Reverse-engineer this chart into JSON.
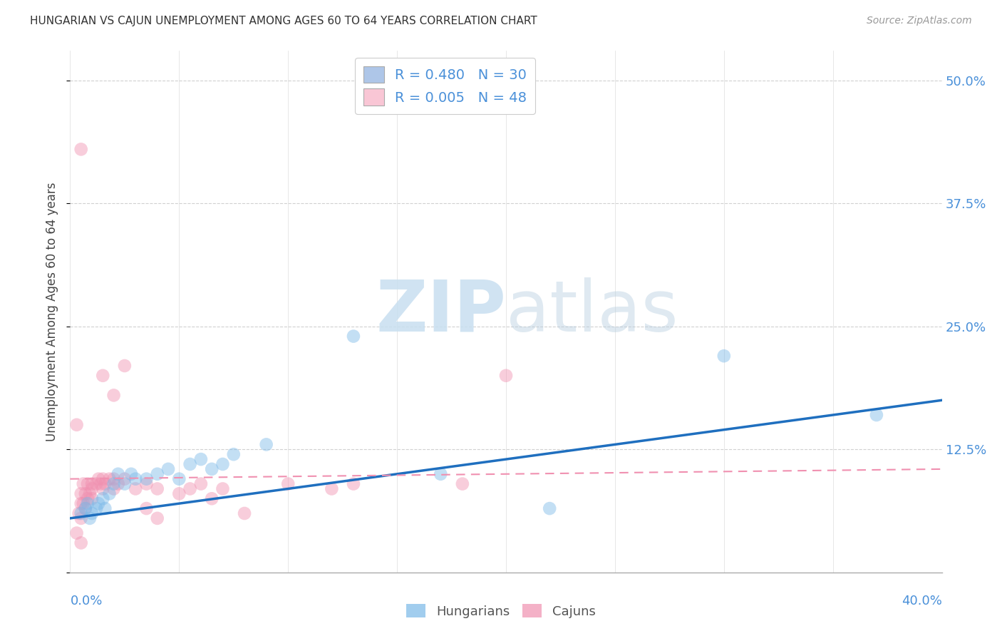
{
  "title": "HUNGARIAN VS CAJUN UNEMPLOYMENT AMONG AGES 60 TO 64 YEARS CORRELATION CHART",
  "source": "Source: ZipAtlas.com",
  "ylabel": "Unemployment Among Ages 60 to 64 years",
  "ytick_values": [
    0.0,
    0.125,
    0.25,
    0.375,
    0.5
  ],
  "ytick_labels": [
    "",
    "12.5%",
    "25.0%",
    "37.5%",
    "50.0%"
  ],
  "xlim": [
    0.0,
    0.4
  ],
  "ylim": [
    0.0,
    0.53
  ],
  "legend_entries": [
    {
      "label": "R = 0.480   N = 30",
      "color": "#aec6e8"
    },
    {
      "label": "R = 0.005   N = 48",
      "color": "#f9c6d5"
    }
  ],
  "hungarian_color": "#7ab8e8",
  "cajun_color": "#f090b0",
  "hungarian_line_color": "#1f6fbf",
  "cajun_line_color": "#f090b0",
  "background_color": "#ffffff",
  "grid_color": "#d0d0d0",
  "hungarian_line": {
    "x": [
      0.0,
      0.4
    ],
    "y": [
      0.055,
      0.175
    ]
  },
  "cajun_line": {
    "x": [
      0.0,
      0.4
    ],
    "y": [
      0.095,
      0.105
    ]
  },
  "hungarians_scatter": [
    [
      0.005,
      0.06
    ],
    [
      0.007,
      0.065
    ],
    [
      0.008,
      0.07
    ],
    [
      0.009,
      0.055
    ],
    [
      0.01,
      0.06
    ],
    [
      0.012,
      0.065
    ],
    [
      0.013,
      0.07
    ],
    [
      0.015,
      0.075
    ],
    [
      0.016,
      0.065
    ],
    [
      0.018,
      0.08
    ],
    [
      0.02,
      0.09
    ],
    [
      0.022,
      0.1
    ],
    [
      0.025,
      0.09
    ],
    [
      0.028,
      0.1
    ],
    [
      0.03,
      0.095
    ],
    [
      0.035,
      0.095
    ],
    [
      0.04,
      0.1
    ],
    [
      0.045,
      0.105
    ],
    [
      0.05,
      0.095
    ],
    [
      0.055,
      0.11
    ],
    [
      0.06,
      0.115
    ],
    [
      0.065,
      0.105
    ],
    [
      0.07,
      0.11
    ],
    [
      0.075,
      0.12
    ],
    [
      0.09,
      0.13
    ],
    [
      0.13,
      0.24
    ],
    [
      0.17,
      0.1
    ],
    [
      0.22,
      0.065
    ],
    [
      0.3,
      0.22
    ],
    [
      0.37,
      0.16
    ]
  ],
  "cajuns_scatter": [
    [
      0.003,
      0.04
    ],
    [
      0.004,
      0.06
    ],
    [
      0.005,
      0.055
    ],
    [
      0.005,
      0.07
    ],
    [
      0.005,
      0.08
    ],
    [
      0.006,
      0.07
    ],
    [
      0.006,
      0.09
    ],
    [
      0.007,
      0.065
    ],
    [
      0.007,
      0.08
    ],
    [
      0.008,
      0.075
    ],
    [
      0.008,
      0.09
    ],
    [
      0.009,
      0.08
    ],
    [
      0.01,
      0.075
    ],
    [
      0.01,
      0.085
    ],
    [
      0.01,
      0.09
    ],
    [
      0.012,
      0.09
    ],
    [
      0.013,
      0.095
    ],
    [
      0.014,
      0.09
    ],
    [
      0.015,
      0.085
    ],
    [
      0.015,
      0.095
    ],
    [
      0.016,
      0.09
    ],
    [
      0.018,
      0.095
    ],
    [
      0.02,
      0.085
    ],
    [
      0.02,
      0.095
    ],
    [
      0.022,
      0.09
    ],
    [
      0.025,
      0.095
    ],
    [
      0.03,
      0.085
    ],
    [
      0.035,
      0.09
    ],
    [
      0.04,
      0.085
    ],
    [
      0.05,
      0.08
    ],
    [
      0.055,
      0.085
    ],
    [
      0.06,
      0.09
    ],
    [
      0.065,
      0.075
    ],
    [
      0.07,
      0.085
    ],
    [
      0.08,
      0.06
    ],
    [
      0.1,
      0.09
    ],
    [
      0.12,
      0.085
    ],
    [
      0.13,
      0.09
    ],
    [
      0.18,
      0.09
    ],
    [
      0.2,
      0.2
    ],
    [
      0.005,
      0.43
    ],
    [
      0.015,
      0.2
    ],
    [
      0.02,
      0.18
    ],
    [
      0.003,
      0.15
    ],
    [
      0.025,
      0.21
    ],
    [
      0.035,
      0.065
    ],
    [
      0.04,
      0.055
    ],
    [
      0.005,
      0.03
    ]
  ]
}
